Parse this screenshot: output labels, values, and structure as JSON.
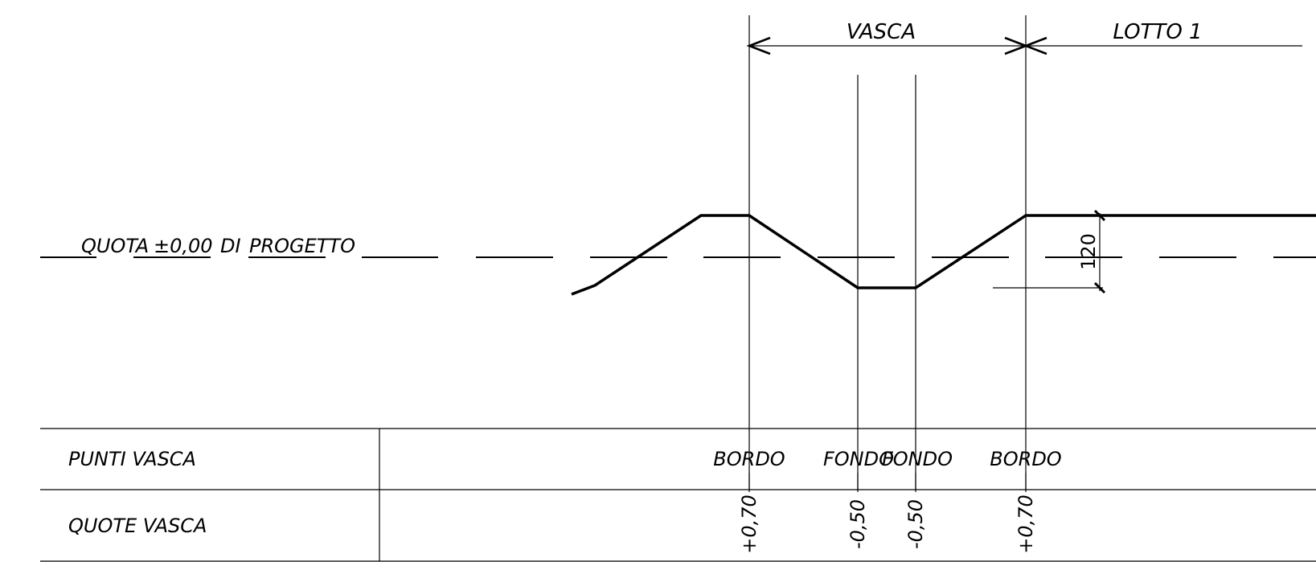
{
  "sections": {
    "vasca": "VASCA",
    "lotto": "LOTTO 1"
  },
  "reference_line": {
    "label_parts": [
      "QUOTA",
      "±0,00",
      "DI",
      "PROGETTO"
    ]
  },
  "dimension": {
    "value": "120"
  },
  "table": {
    "row1_header": "PUNTI VASCA",
    "row2_header": "QUOTE VASCA",
    "points": [
      {
        "name": "BORDO",
        "elevation": "+0,70"
      },
      {
        "name": "FONDO",
        "elevation": "-0,50"
      },
      {
        "name": "FONDO",
        "elevation": "-0,50"
      },
      {
        "name": "BORDO",
        "elevation": "+0,70"
      }
    ]
  }
}
